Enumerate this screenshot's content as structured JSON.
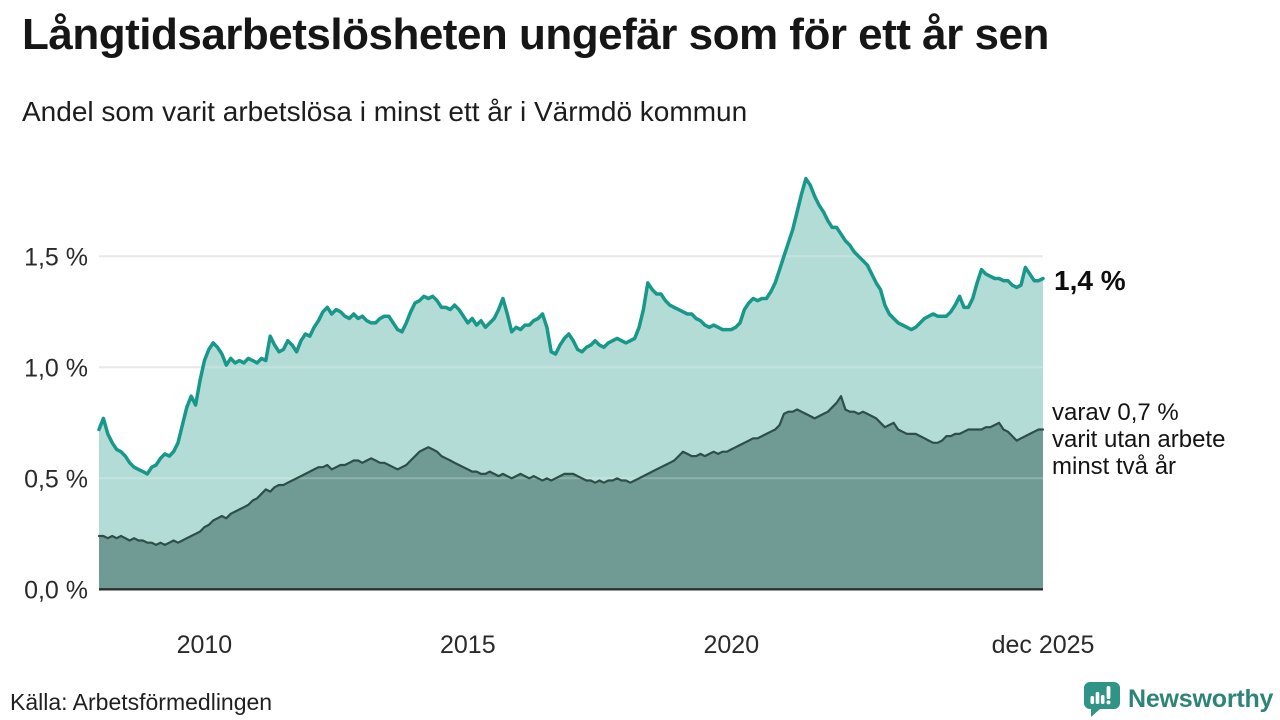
{
  "header": {
    "title": "Långtidsarbetslösheten ungefär som för ett år sen",
    "subtitle": "Andel som varit arbetslösa i minst ett år i Värmdö kommun"
  },
  "annotations": {
    "end_value": "1,4 %",
    "note_lines": [
      "varav 0,7 %",
      "varit utan arbete",
      "minst två år"
    ]
  },
  "footer": {
    "source": "Källa: Arbetsförmedlingen",
    "logo_text": "Newsworthy"
  },
  "chart_data": {
    "type": "area",
    "title": "Långtidsarbetslösheten ungefär som för ett år sen",
    "subtitle": "Andel som varit arbetslösa i minst ett år i Värmdö kommun",
    "unit": "%",
    "x_start": "2008-01",
    "x_end": "2025-12",
    "freq": "monthly",
    "grid": "horizontal",
    "ylim": [
      0,
      1.9
    ],
    "colors": {
      "grid": "#e3e3e3",
      "axis": "#2e2e2e"
    },
    "y_ticks": [
      {
        "value": 0.0,
        "label": "0,0 %"
      },
      {
        "value": 0.5,
        "label": "0,5 %"
      },
      {
        "value": 1.0,
        "label": "1,0 %"
      },
      {
        "value": 1.5,
        "label": "1,5 %"
      }
    ],
    "x_ticks": [
      {
        "label": "2010",
        "month_index": 24
      },
      {
        "label": "2015",
        "month_index": 84
      },
      {
        "label": "2020",
        "month_index": 144
      },
      {
        "label": "dec 2025",
        "month_index": 215
      }
    ],
    "series": [
      {
        "name": "Andel som varit arbetslösa i minst ett år",
        "color": "#18988a",
        "fill": "#b4dcd6",
        "end_label": "1,4 %",
        "values": [
          0.72,
          0.77,
          0.7,
          0.66,
          0.63,
          0.62,
          0.6,
          0.57,
          0.55,
          0.54,
          0.53,
          0.52,
          0.55,
          0.56,
          0.59,
          0.61,
          0.6,
          0.62,
          0.66,
          0.74,
          0.82,
          0.87,
          0.83,
          0.94,
          1.03,
          1.08,
          1.11,
          1.09,
          1.06,
          1.01,
          1.04,
          1.02,
          1.03,
          1.02,
          1.04,
          1.03,
          1.02,
          1.04,
          1.03,
          1.14,
          1.1,
          1.07,
          1.08,
          1.12,
          1.1,
          1.07,
          1.12,
          1.15,
          1.14,
          1.18,
          1.21,
          1.25,
          1.27,
          1.24,
          1.26,
          1.25,
          1.23,
          1.22,
          1.24,
          1.22,
          1.23,
          1.21,
          1.2,
          1.2,
          1.22,
          1.23,
          1.23,
          1.2,
          1.17,
          1.16,
          1.2,
          1.25,
          1.29,
          1.3,
          1.32,
          1.31,
          1.32,
          1.3,
          1.27,
          1.27,
          1.26,
          1.28,
          1.26,
          1.23,
          1.2,
          1.22,
          1.19,
          1.21,
          1.18,
          1.2,
          1.22,
          1.26,
          1.31,
          1.24,
          1.16,
          1.18,
          1.17,
          1.19,
          1.19,
          1.21,
          1.22,
          1.24,
          1.18,
          1.07,
          1.06,
          1.1,
          1.13,
          1.15,
          1.12,
          1.08,
          1.07,
          1.09,
          1.1,
          1.12,
          1.1,
          1.09,
          1.11,
          1.12,
          1.13,
          1.12,
          1.11,
          1.12,
          1.13,
          1.18,
          1.26,
          1.38,
          1.35,
          1.33,
          1.33,
          1.3,
          1.28,
          1.27,
          1.26,
          1.25,
          1.24,
          1.24,
          1.22,
          1.21,
          1.19,
          1.18,
          1.19,
          1.18,
          1.17,
          1.17,
          1.17,
          1.18,
          1.2,
          1.26,
          1.29,
          1.31,
          1.3,
          1.31,
          1.31,
          1.34,
          1.38,
          1.44,
          1.5,
          1.56,
          1.62,
          1.7,
          1.78,
          1.85,
          1.82,
          1.77,
          1.73,
          1.7,
          1.66,
          1.63,
          1.63,
          1.6,
          1.57,
          1.55,
          1.52,
          1.5,
          1.48,
          1.46,
          1.42,
          1.38,
          1.35,
          1.28,
          1.24,
          1.22,
          1.2,
          1.19,
          1.18,
          1.17,
          1.18,
          1.2,
          1.22,
          1.23,
          1.24,
          1.23,
          1.23,
          1.23,
          1.25,
          1.28,
          1.32,
          1.27,
          1.27,
          1.31,
          1.38,
          1.44,
          1.42,
          1.41,
          1.4,
          1.4,
          1.39,
          1.39,
          1.37,
          1.36,
          1.37,
          1.45,
          1.42,
          1.39,
          1.39,
          1.4
        ]
      },
      {
        "name": "varav varit utan arbete minst två år",
        "color": "#2e4e48",
        "fill": "#6f9b94",
        "end_label": "0,7 %",
        "values": [
          0.24,
          0.24,
          0.23,
          0.24,
          0.23,
          0.24,
          0.23,
          0.22,
          0.23,
          0.22,
          0.22,
          0.21,
          0.21,
          0.2,
          0.21,
          0.2,
          0.21,
          0.22,
          0.21,
          0.22,
          0.23,
          0.24,
          0.25,
          0.26,
          0.28,
          0.29,
          0.31,
          0.32,
          0.33,
          0.32,
          0.34,
          0.35,
          0.36,
          0.37,
          0.38,
          0.4,
          0.41,
          0.43,
          0.45,
          0.44,
          0.46,
          0.47,
          0.47,
          0.48,
          0.49,
          0.5,
          0.51,
          0.52,
          0.53,
          0.54,
          0.55,
          0.55,
          0.56,
          0.54,
          0.55,
          0.56,
          0.56,
          0.57,
          0.58,
          0.58,
          0.57,
          0.58,
          0.59,
          0.58,
          0.57,
          0.57,
          0.56,
          0.55,
          0.54,
          0.55,
          0.56,
          0.58,
          0.6,
          0.62,
          0.63,
          0.64,
          0.63,
          0.62,
          0.6,
          0.59,
          0.58,
          0.57,
          0.56,
          0.55,
          0.54,
          0.53,
          0.53,
          0.52,
          0.52,
          0.53,
          0.52,
          0.51,
          0.52,
          0.51,
          0.5,
          0.51,
          0.52,
          0.51,
          0.5,
          0.51,
          0.5,
          0.49,
          0.5,
          0.49,
          0.5,
          0.51,
          0.52,
          0.52,
          0.52,
          0.51,
          0.5,
          0.49,
          0.49,
          0.48,
          0.49,
          0.48,
          0.49,
          0.49,
          0.5,
          0.49,
          0.49,
          0.48,
          0.49,
          0.5,
          0.51,
          0.52,
          0.53,
          0.54,
          0.55,
          0.56,
          0.57,
          0.58,
          0.6,
          0.62,
          0.61,
          0.6,
          0.6,
          0.61,
          0.6,
          0.61,
          0.62,
          0.61,
          0.62,
          0.62,
          0.63,
          0.64,
          0.65,
          0.66,
          0.67,
          0.68,
          0.68,
          0.69,
          0.7,
          0.71,
          0.72,
          0.74,
          0.79,
          0.8,
          0.8,
          0.81,
          0.8,
          0.79,
          0.78,
          0.77,
          0.78,
          0.79,
          0.8,
          0.82,
          0.84,
          0.87,
          0.81,
          0.8,
          0.8,
          0.79,
          0.8,
          0.79,
          0.78,
          0.77,
          0.75,
          0.73,
          0.74,
          0.75,
          0.72,
          0.71,
          0.7,
          0.7,
          0.7,
          0.69,
          0.68,
          0.67,
          0.66,
          0.66,
          0.67,
          0.69,
          0.69,
          0.7,
          0.7,
          0.71,
          0.72,
          0.72,
          0.72,
          0.72,
          0.73,
          0.73,
          0.74,
          0.75,
          0.72,
          0.71,
          0.69,
          0.67,
          0.68,
          0.69,
          0.7,
          0.71,
          0.72,
          0.72
        ]
      }
    ]
  }
}
